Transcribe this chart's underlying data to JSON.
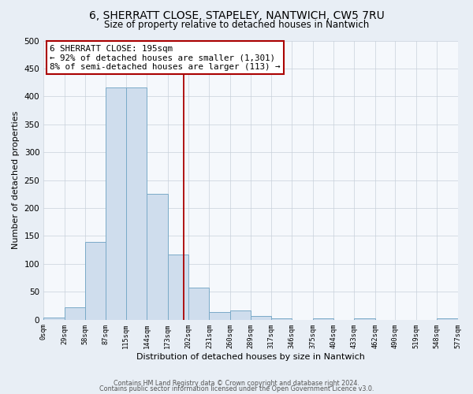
{
  "title": "6, SHERRATT CLOSE, STAPELEY, NANTWICH, CW5 7RU",
  "subtitle": "Size of property relative to detached houses in Nantwich",
  "xlabel": "Distribution of detached houses by size in Nantwich",
  "ylabel": "Number of detached properties",
  "bar_edges": [
    0,
    29,
    58,
    87,
    115,
    144,
    173,
    202,
    231,
    260,
    289,
    317,
    346,
    375,
    404,
    433,
    462,
    490,
    519,
    548,
    577
  ],
  "bar_heights": [
    3,
    22,
    139,
    416,
    416,
    225,
    116,
    58,
    13,
    16,
    7,
    2,
    0,
    2,
    0,
    2,
    0,
    0,
    0,
    2
  ],
  "bar_color": "#cfdded",
  "bar_edge_color": "#7aaac8",
  "property_line_x": 195,
  "property_line_color": "#aa0000",
  "annotation_line1": "6 SHERRATT CLOSE: 195sqm",
  "annotation_line2": "← 92% of detached houses are smaller (1,301)",
  "annotation_line3": "8% of semi-detached houses are larger (113) →",
  "annotation_box_facecolor": "#ffffff",
  "annotation_box_edgecolor": "#aa0000",
  "ylim": [
    0,
    500
  ],
  "yticks": [
    0,
    50,
    100,
    150,
    200,
    250,
    300,
    350,
    400,
    450,
    500
  ],
  "tick_labels": [
    "0sqm",
    "29sqm",
    "58sqm",
    "87sqm",
    "115sqm",
    "144sqm",
    "173sqm",
    "202sqm",
    "231sqm",
    "260sqm",
    "289sqm",
    "317sqm",
    "346sqm",
    "375sqm",
    "404sqm",
    "433sqm",
    "462sqm",
    "490sqm",
    "519sqm",
    "548sqm",
    "577sqm"
  ],
  "fig_bg_color": "#e8eef5",
  "plot_bg_color": "#f5f8fc",
  "grid_color": "#c8d0da",
  "footer_line1": "Contains HM Land Registry data © Crown copyright and database right 2024.",
  "footer_line2": "Contains public sector information licensed under the Open Government Licence v3.0."
}
